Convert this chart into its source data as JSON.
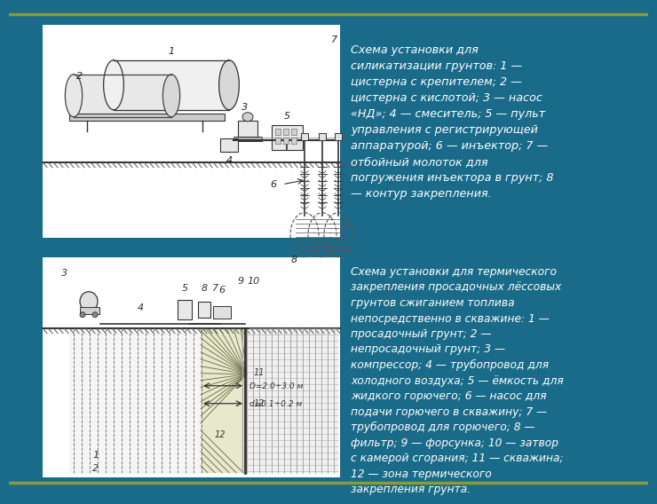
{
  "bg_color": "#1a6b8a",
  "panel_bg": "#ffffff",
  "text_color": "#ffffff",
  "border_color": "#8b9a3a",
  "fig_width": 7.2,
  "fig_height": 5.4,
  "text1": "Схема установки для\nсиликатизации грунтов: 1 —\nцистерна с крепителем; 2 —\nцистерна с кислотой; 3 — насос\n«НД»; 4 — смеситель; 5 — пульт\nуправления с регистрирующей\nаппаратурой; 6 — инъектор; 7 —\nотбойный молоток для\nпогружения инъектора в грунт; 8\n— контур закрепления.",
  "text2": "Схема установки для термического\nзакрепления просадочных лёссовых\nгрунтов сжиганием топлива\nнепосредственно в скважине: 1 —\nпросадочный грунт; 2 —\nнепросадочный грунт; 3 —\nкомпрессор; 4 — трубопровод для\nхолодного воздуха; 5 — ёмкость для\nжидкого горючего; 6 — насос для\nподачи горючего в скважину; 7 —\nтрубопровод для горючего; 8 —\nфильтр; 9 — форсунка; 10 — затвор\nс камерой сгорания; 11 — скважина;\n12 — зона термического\nзакрепления грунта.",
  "font_size1": 9.2,
  "font_size2": 8.8
}
